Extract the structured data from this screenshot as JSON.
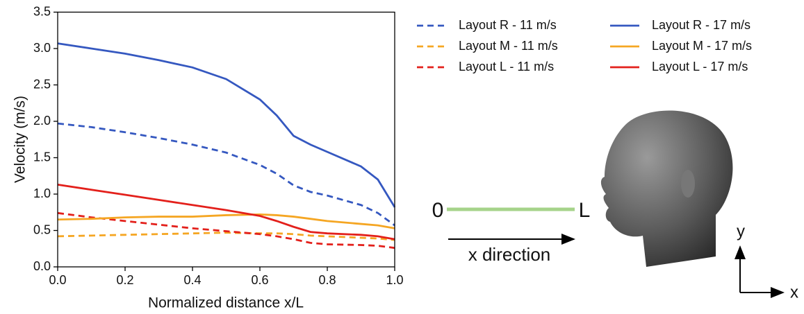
{
  "chart_data": {
    "type": "line",
    "xlabel": "Normalized distance x/L",
    "ylabel": "Velocity (m/s)",
    "x": [
      0,
      0.1,
      0.2,
      0.3,
      0.4,
      0.5,
      0.6,
      0.65,
      0.7,
      0.75,
      0.8,
      0.9,
      0.95,
      1.0
    ],
    "series": [
      {
        "name": "Layout R - 11 m/s",
        "color": "#3558c0",
        "dash": true,
        "values": [
          1.97,
          1.92,
          1.85,
          1.77,
          1.68,
          1.57,
          1.4,
          1.28,
          1.12,
          1.03,
          0.98,
          0.85,
          0.74,
          0.57
        ]
      },
      {
        "name": "Layout M - 11 m/s",
        "color": "#f5a623",
        "dash": true,
        "values": [
          0.42,
          0.43,
          0.44,
          0.45,
          0.46,
          0.47,
          0.46,
          0.46,
          0.45,
          0.43,
          0.42,
          0.4,
          0.39,
          0.37
        ]
      },
      {
        "name": "Layout L - 11 m/s",
        "color": "#e3201b",
        "dash": true,
        "values": [
          0.74,
          0.68,
          0.63,
          0.58,
          0.53,
          0.49,
          0.45,
          0.42,
          0.38,
          0.33,
          0.31,
          0.3,
          0.29,
          0.26
        ]
      },
      {
        "name": "Layout R - 17 m/s",
        "color": "#3558c0",
        "dash": false,
        "values": [
          3.07,
          3.0,
          2.93,
          2.84,
          2.74,
          2.58,
          2.3,
          2.08,
          1.8,
          1.68,
          1.58,
          1.38,
          1.2,
          0.82
        ]
      },
      {
        "name": "Layout M - 17 m/s",
        "color": "#f5a623",
        "dash": false,
        "values": [
          0.65,
          0.66,
          0.68,
          0.69,
          0.69,
          0.71,
          0.72,
          0.71,
          0.69,
          0.66,
          0.63,
          0.59,
          0.57,
          0.53
        ]
      },
      {
        "name": "Layout L - 17 m/s",
        "color": "#e3201b",
        "dash": false,
        "values": [
          1.13,
          1.06,
          0.99,
          0.92,
          0.85,
          0.78,
          0.7,
          0.63,
          0.55,
          0.48,
          0.46,
          0.44,
          0.42,
          0.38
        ]
      }
    ],
    "xlim": [
      0,
      1.0
    ],
    "ylim": [
      0,
      3.5
    ],
    "xticks": [
      {
        "value": 0,
        "label": "0.0"
      },
      0.2,
      0.4,
      0.6,
      0.8,
      {
        "value": 1.0,
        "label": "1.0"
      }
    ],
    "yticks": [
      {
        "value": 0,
        "label": "0.0"
      },
      0.5,
      {
        "value": 1.0,
        "label": "1.0"
      },
      1.5,
      {
        "value": 2.0,
        "label": "2.0"
      },
      2.5,
      {
        "value": 3.0,
        "label": "3.0"
      },
      3.5
    ],
    "grid": false
  },
  "diagram": {
    "start_label": "0",
    "end_label": "L",
    "arrow_label": "x direction",
    "axis_y": "y",
    "axis_x": "x"
  }
}
